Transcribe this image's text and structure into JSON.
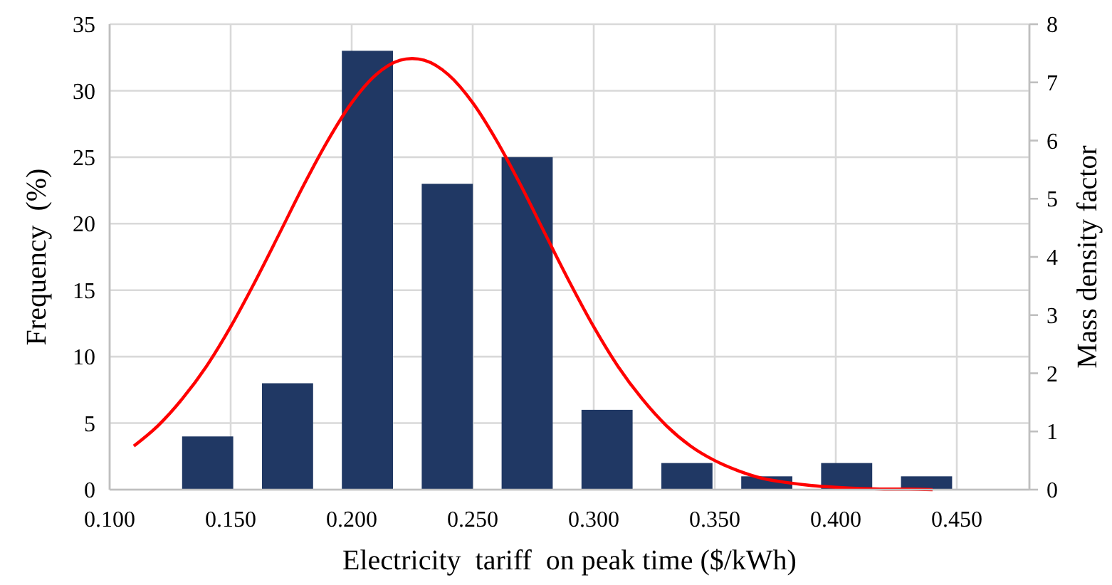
{
  "chart_data": {
    "type": "histogram",
    "xlabel": "Electricity  tariff  on peak time ($/kWh)",
    "ylabel": "Frequency  (%)",
    "y2label": "Mass density factor",
    "bins": [
      0.124,
      0.157,
      0.19,
      0.223,
      0.256,
      0.289,
      0.322,
      0.355,
      0.388,
      0.421,
      0.454
    ],
    "values": [
      4,
      8,
      33,
      23,
      25,
      6,
      2,
      1,
      2,
      1
    ],
    "color": "#203864",
    "series": [
      {
        "type": "line",
        "axis": "y2",
        "color": "#ff0000",
        "x": [
          0.11,
          0.12,
          0.13,
          0.14,
          0.15,
          0.16,
          0.17,
          0.18,
          0.19,
          0.2,
          0.21,
          0.22,
          0.225,
          0.23,
          0.24,
          0.25,
          0.26,
          0.27,
          0.28,
          0.29,
          0.3,
          0.31,
          0.32,
          0.33,
          0.34,
          0.35,
          0.36,
          0.37,
          0.38,
          0.39,
          0.4,
          0.41,
          0.42,
          0.43,
          0.44
        ],
        "values": [
          0.75,
          1.1,
          1.56,
          2.12,
          2.8,
          3.57,
          4.39,
          5.22,
          5.99,
          6.65,
          7.13,
          7.38,
          7.41,
          7.38,
          7.13,
          6.65,
          5.99,
          5.22,
          4.39,
          3.57,
          2.8,
          2.12,
          1.56,
          1.1,
          0.75,
          0.5,
          0.32,
          0.19,
          0.12,
          0.07,
          0.04,
          0.02,
          0.01,
          0.01,
          0.0
        ]
      }
    ],
    "xlim": [
      0.1,
      0.48
    ],
    "xticks": [
      {
        "value": 0.1,
        "label": "0.100"
      },
      {
        "value": 0.15,
        "label": "0.150"
      },
      {
        "value": 0.2,
        "label": "0.200"
      },
      {
        "value": 0.25,
        "label": "0.250"
      },
      {
        "value": 0.3,
        "label": "0.300"
      },
      {
        "value": 0.35,
        "label": "0.350"
      },
      {
        "value": 0.4,
        "label": "0.400"
      },
      {
        "value": 0.45,
        "label": "0.450"
      }
    ],
    "ylim": [
      0,
      35
    ],
    "yticks": [
      0,
      5,
      10,
      15,
      20,
      25,
      30,
      35
    ],
    "y2lim": [
      0,
      8
    ],
    "y2ticks": [
      0,
      1,
      2,
      3,
      4,
      5,
      6,
      7,
      8
    ],
    "grid": true,
    "line_style": "solid",
    "marker": "none"
  }
}
